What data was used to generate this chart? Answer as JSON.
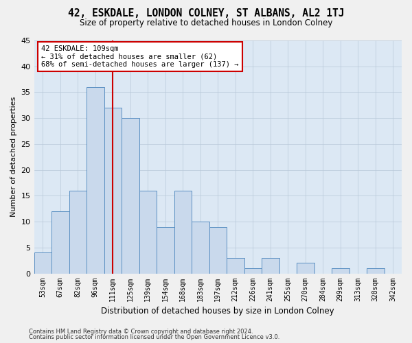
{
  "title": "42, ESKDALE, LONDON COLNEY, ST ALBANS, AL2 1TJ",
  "subtitle": "Size of property relative to detached houses in London Colney",
  "xlabel": "Distribution of detached houses by size in London Colney",
  "ylabel": "Number of detached properties",
  "categories": [
    "53sqm",
    "67sqm",
    "82sqm",
    "96sqm",
    "111sqm",
    "125sqm",
    "139sqm",
    "154sqm",
    "168sqm",
    "183sqm",
    "197sqm",
    "212sqm",
    "226sqm",
    "241sqm",
    "255sqm",
    "270sqm",
    "284sqm",
    "299sqm",
    "313sqm",
    "328sqm",
    "342sqm"
  ],
  "values": [
    4,
    12,
    16,
    36,
    32,
    30,
    16,
    9,
    16,
    10,
    9,
    3,
    1,
    3,
    0,
    2,
    0,
    1,
    0,
    1,
    0
  ],
  "bar_color": "#c9d9ec",
  "bar_edge_color": "#5a8fc2",
  "grid_color": "#b8c8d8",
  "background_color": "#dce8f4",
  "fig_background_color": "#f0f0f0",
  "vline_x_index": 4,
  "vline_color": "#cc0000",
  "annotation_text": "42 ESKDALE: 109sqm\n← 31% of detached houses are smaller (62)\n68% of semi-detached houses are larger (137) →",
  "annotation_box_color": "#ffffff",
  "annotation_box_edge": "#cc0000",
  "footer_line1": "Contains HM Land Registry data © Crown copyright and database right 2024.",
  "footer_line2": "Contains public sector information licensed under the Open Government Licence v3.0.",
  "ylim": [
    0,
    45
  ],
  "yticks": [
    0,
    5,
    10,
    15,
    20,
    25,
    30,
    35,
    40,
    45
  ]
}
